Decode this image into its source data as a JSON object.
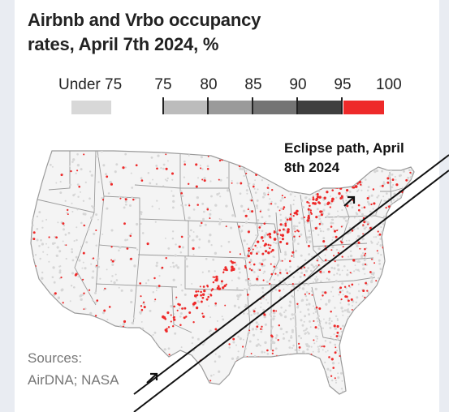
{
  "title": "Airbnb and Vrbo occupancy rates, April 7th 2024, %",
  "legend": {
    "under_label": "Under 75",
    "ticks": [
      "75",
      "80",
      "85",
      "90",
      "95",
      "100"
    ],
    "colors": {
      "under_75": "#d8d8d8",
      "75_80": "#bcbcbc",
      "80_85": "#9a9a9a",
      "85_90": "#747474",
      "90_95": "#3f3f3f",
      "95_100": "#ee2a2a"
    }
  },
  "eclipse_label": "Eclipse path, April 8th 2024",
  "sources": "Sources: AirDNA; NASA",
  "map_colors": {
    "land": "#f4f4f4",
    "border": "#9a9a9a",
    "low": "#d6d6d6",
    "high": "#ee2a2a",
    "path_line": "#111111"
  }
}
